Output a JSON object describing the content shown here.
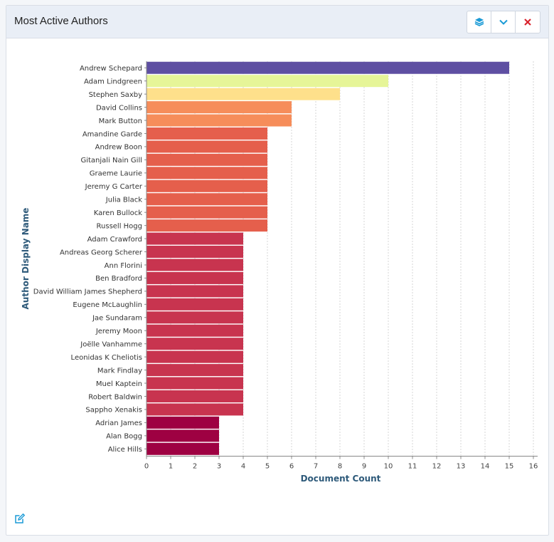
{
  "panel": {
    "title": "Most Active Authors",
    "buttons": [
      {
        "name": "layers-button",
        "icon": "layers-icon",
        "color": "#1a9ad6"
      },
      {
        "name": "collapse-button",
        "icon": "chevron-down-icon",
        "color": "#1a9ad6"
      },
      {
        "name": "close-button",
        "icon": "close-icon",
        "color": "#d9232d"
      }
    ],
    "footer_icon": "edit-icon"
  },
  "chart_data": {
    "type": "bar",
    "orientation": "horizontal",
    "xlabel": "Document Count",
    "ylabel": "Author Display Name",
    "xlim": [
      0,
      16
    ],
    "x_ticks": [
      "0",
      "1",
      "2",
      "3",
      "4",
      "5",
      "6",
      "7",
      "8",
      "9",
      "10",
      "11",
      "12",
      "13",
      "14",
      "15",
      "16"
    ],
    "grid": "vertical dotted",
    "categories": [
      "Andrew Schepard",
      "Adam Lindgreen",
      "Stephen Saxby",
      "David Collins",
      "Mark Button",
      "Amandine Garde",
      "Andrew Boon",
      "Gitanjali Nain Gill",
      "Graeme Laurie",
      "Jeremy G Carter",
      "Julia Black",
      "Karen Bullock",
      "Russell Hogg",
      "Adam Crawford",
      "Andreas Georg Scherer",
      "Ann Florini",
      "Ben Bradford",
      "David William James Shepherd",
      "Eugene McLaughlin",
      "Jae Sundaram",
      "Jeremy Moon",
      "Joëlle Vanhamme",
      "Leonidas K Cheliotis",
      "Mark Findlay",
      "Muel Kaptein",
      "Robert Baldwin",
      "Sappho Xenakis",
      "Adrian James",
      "Alan Bogg",
      "Alice Hills"
    ],
    "values": [
      15,
      10,
      8,
      6,
      6,
      5,
      5,
      5,
      5,
      5,
      5,
      5,
      5,
      4,
      4,
      4,
      4,
      4,
      4,
      4,
      4,
      4,
      4,
      4,
      4,
      4,
      4,
      3,
      3,
      3
    ],
    "colors": [
      "#5e4fa2",
      "#e6f598",
      "#fee08b",
      "#f68d5a",
      "#f68d5a",
      "#e55f4c",
      "#e55f4c",
      "#e55f4c",
      "#e55f4c",
      "#e55f4c",
      "#e55f4c",
      "#e55f4c",
      "#e55f4c",
      "#c8344f",
      "#c8344f",
      "#c8344f",
      "#c8344f",
      "#c8344f",
      "#c8344f",
      "#c8344f",
      "#c8344f",
      "#c8344f",
      "#c8344f",
      "#c8344f",
      "#c8344f",
      "#c8344f",
      "#c8344f",
      "#9e0142",
      "#9e0142",
      "#9e0142"
    ]
  }
}
